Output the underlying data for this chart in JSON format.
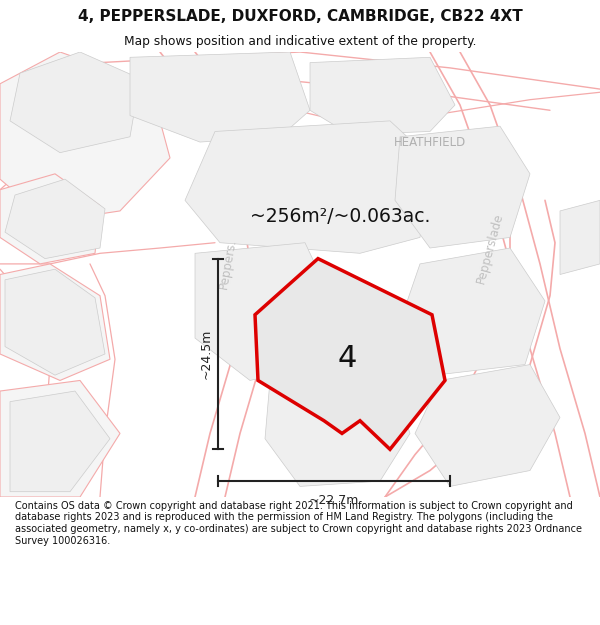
{
  "title": "4, PEPPERSLADE, DUXFORD, CAMBRIDGE, CB22 4XT",
  "subtitle": "Map shows position and indicative extent of the property.",
  "area_label": "~256m²/~0.063ac.",
  "dim_width": "~22.7m",
  "dim_height": "~24.5m",
  "number_label": "4",
  "street_label_left": "Peppers.",
  "street_label_right": "Pepperslade",
  "area_label2": "HEATHFIELD",
  "footer": "Contains OS data © Crown copyright and database right 2021. This information is subject to Crown copyright and database rights 2023 and is reproduced with the permission of HM Land Registry. The polygons (including the associated geometry, namely x, y co-ordinates) are subject to Crown copyright and database rights 2023 Ordnance Survey 100026316.",
  "bg_color": "#ffffff",
  "map_bg": "#ffffff",
  "plot_fill": "#efefef",
  "plot_edge": "#cccccc",
  "road_color": "#f4aaaa",
  "property_fill": "#e8e8e8",
  "property_edge": "#dd0000",
  "dim_color": "#222222",
  "street_color": "#c0c0c0",
  "heathfield_color": "#b0b0b0"
}
